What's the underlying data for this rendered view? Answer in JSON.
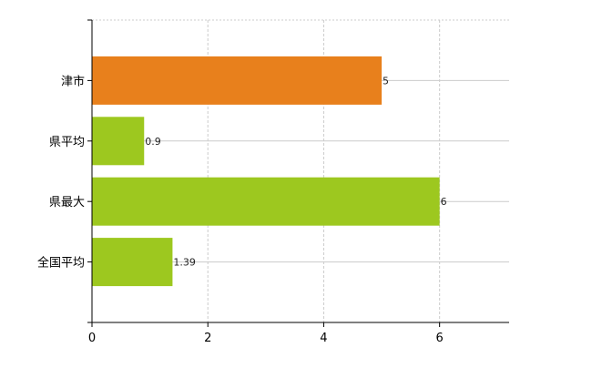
{
  "chart_data": {
    "type": "bar",
    "orientation": "horizontal",
    "categories": [
      "津市",
      "県平均",
      "県最大",
      "全国平均"
    ],
    "values": [
      5,
      0.9,
      6,
      1.39
    ],
    "value_labels": [
      "5",
      "0.9",
      "6",
      "1.39"
    ],
    "bar_colors": [
      "#e8801c",
      "#9dc81f",
      "#9dc81f",
      "#9dc81f"
    ],
    "xlim": [
      0,
      7.2
    ],
    "xticks": [
      0,
      2,
      4,
      6
    ],
    "title": "",
    "xlabel": "",
    "ylabel": "",
    "grid": true,
    "legend": "none"
  }
}
